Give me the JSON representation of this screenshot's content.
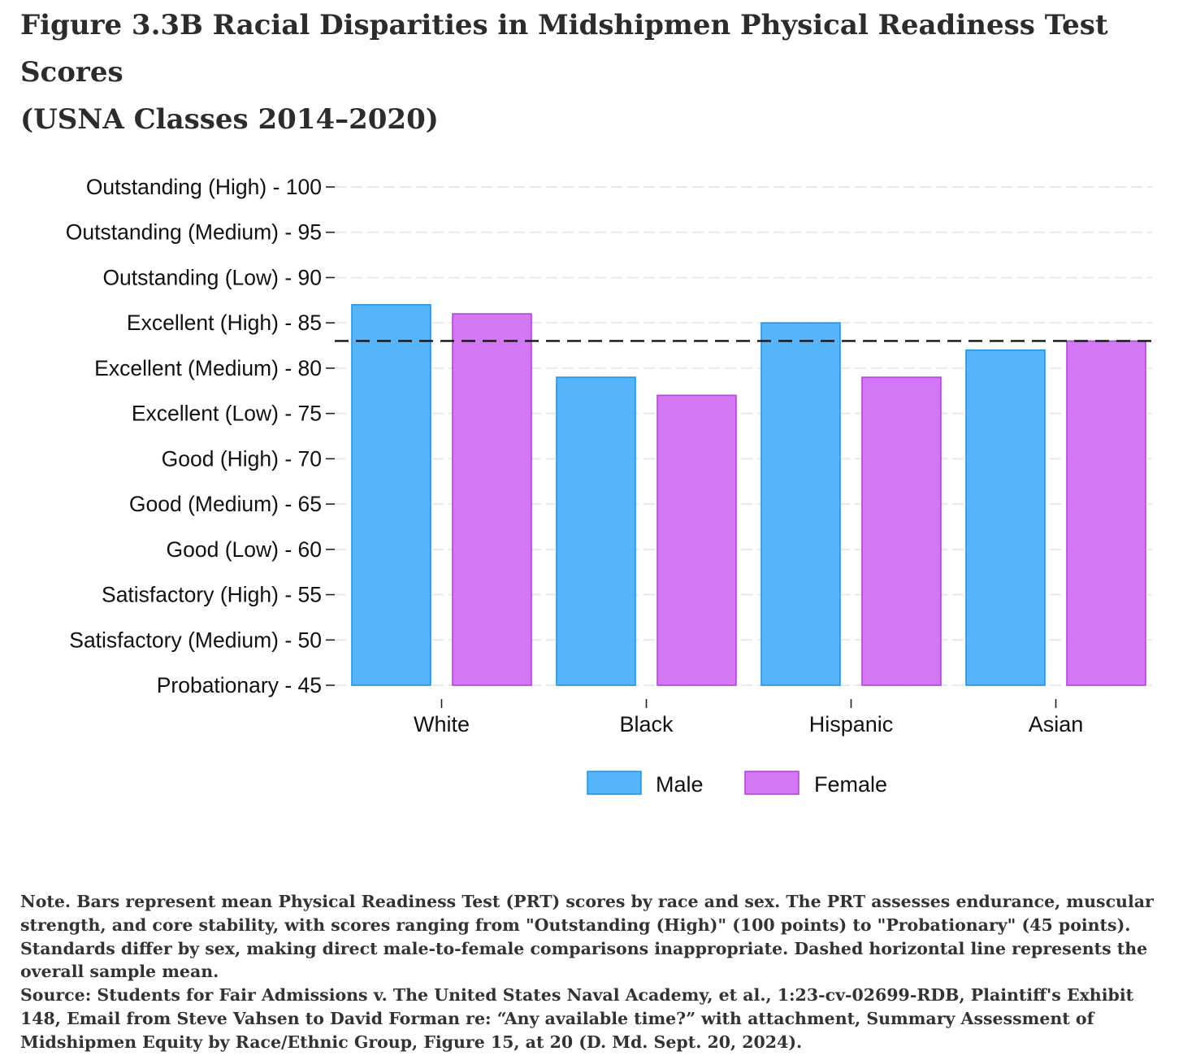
{
  "figure": {
    "title_line1": "Figure 3.3B Racial Disparities in Midshipmen Physical Readiness Test Scores",
    "title_line2": "(USNA Classes 2014–2020)"
  },
  "notes": {
    "note": "Note. Bars represent mean Physical Readiness Test (PRT) scores by race and sex. The PRT assesses endurance, muscular strength, and core stability, with scores ranging from \"Outstanding (High)\" (100 points) to \"Probationary\" (45 points). Standards differ by sex, making direct male-to-female comparisons inappropriate. Dashed horizontal line represents the overall sample mean.",
    "source": "Source: Students for Fair Admissions v. The United States Naval Academy, et al., 1:23-cv-02699-RDB, Plaintiff's Exhibit 148, Email from Steve Vahsen to David Forman re: “Any available time?” with attachment, Summary Assessment of Midshipmen Equity by Race/Ethnic Group, Figure 15, at 20 (D. Md. Sept. 20, 2024)."
  },
  "chart_data": {
    "type": "bar",
    "categories": [
      "White",
      "Black",
      "Hispanic",
      "Asian"
    ],
    "series": [
      {
        "name": "Male",
        "values": [
          87,
          79,
          85,
          82
        ],
        "color": "#56b4fa",
        "stroke": "#1e90e0"
      },
      {
        "name": "Female",
        "values": [
          86,
          77,
          79,
          83
        ],
        "color": "#d477f5",
        "stroke": "#b13fd6"
      }
    ],
    "ylim": [
      45,
      100
    ],
    "ytick_values": [
      100,
      95,
      90,
      85,
      80,
      75,
      70,
      65,
      60,
      55,
      50,
      45
    ],
    "ytick_labels": [
      "Outstanding (High) - 100",
      "Outstanding (Medium) - 95",
      "Outstanding (Low) - 90",
      "Excellent (High) - 85",
      "Excellent (Medium) - 80",
      "Excellent (Low) - 75",
      "Good (High) - 70",
      "Good (Medium) - 65",
      "Good (Low) - 60",
      "Satisfactory (High) - 55",
      "Satisfactory (Medium) - 50",
      "Probationary - 45"
    ],
    "reference_line": 83,
    "grid": true,
    "legend_position": "bottom"
  }
}
